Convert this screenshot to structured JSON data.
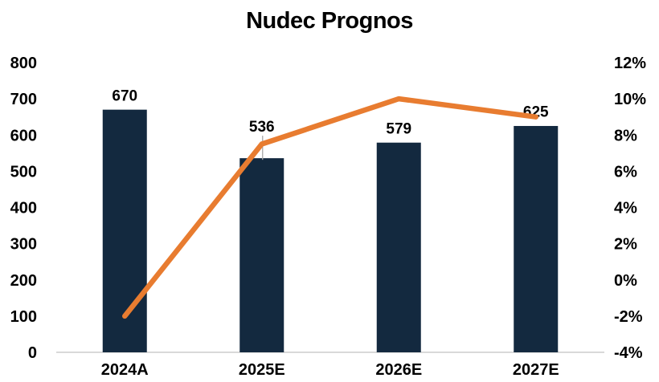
{
  "chart_data": {
    "type": "combo",
    "title": "Nudec Prognos",
    "categories": [
      "2024A",
      "2025E",
      "2026E",
      "2027E"
    ],
    "series": [
      {
        "name": "bars",
        "type": "bar",
        "axis": "left",
        "values": [
          670,
          536,
          579,
          625
        ],
        "data_labels": [
          "670",
          "536",
          "579",
          "625"
        ],
        "color": "#13293F"
      },
      {
        "name": "line",
        "type": "line",
        "axis": "right",
        "values": [
          -2,
          7.5,
          10,
          9
        ],
        "unit": "%",
        "color": "#E87C30"
      }
    ],
    "left_axis": {
      "min": 0,
      "max": 800,
      "tick_labels": [
        "800",
        "700",
        "600",
        "500",
        "400",
        "300",
        "200",
        "100",
        "0"
      ]
    },
    "right_axis": {
      "min": -4,
      "max": 12,
      "tick_labels": [
        "12%",
        "10%",
        "8%",
        "6%",
        "4%",
        "2%",
        "0%",
        "-2%",
        "-4%"
      ]
    },
    "legend": "none",
    "grid": "off",
    "annotations": {
      "label_callout": {
        "category_index": 1,
        "has_leader_line": true
      }
    },
    "styles": {
      "background": "#FFFFFF",
      "text_color": "#000000",
      "axis_line_color": "#D9D9D9",
      "leader_line_color": "#A6A6A6"
    }
  }
}
